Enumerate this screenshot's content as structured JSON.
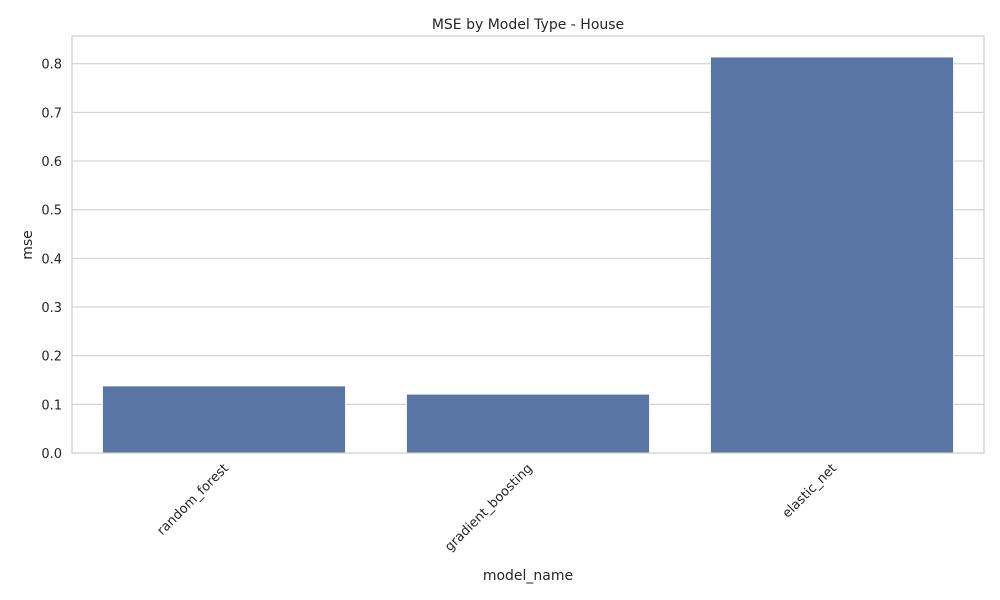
{
  "chart_data": {
    "type": "bar",
    "title": "MSE by Model Type - House",
    "xlabel": "model_name",
    "ylabel": "mse",
    "categories": [
      "random_forest",
      "gradient_boosting",
      "elastic_net"
    ],
    "values": [
      0.138,
      0.121,
      0.814
    ],
    "ylim": [
      0,
      0.857
    ],
    "yticks": [
      0.0,
      0.1,
      0.2,
      0.3,
      0.4,
      0.5,
      0.6,
      0.7,
      0.8
    ],
    "ytick_labels": [
      "0.0",
      "0.1",
      "0.2",
      "0.3",
      "0.4",
      "0.5",
      "0.6",
      "0.7",
      "0.8"
    ],
    "xtick_rotation_deg": 45,
    "grid": true,
    "bar_color": "#5875a4"
  }
}
